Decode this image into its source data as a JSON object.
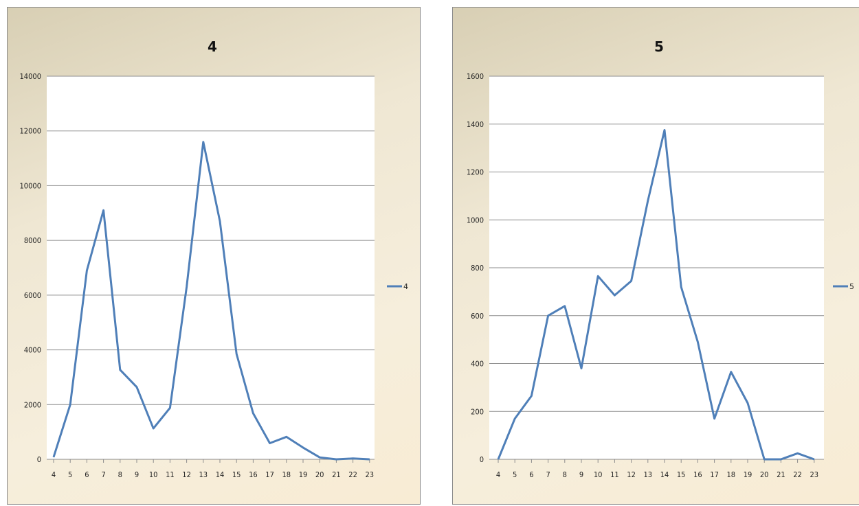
{
  "colors": {
    "series": "#4f7fb8",
    "grid": "#8c8c8c",
    "plot_bg": "#ffffff"
  },
  "chart_data": [
    {
      "type": "line",
      "title": "4",
      "categories": [
        "4",
        "5",
        "6",
        "7",
        "8",
        "9",
        "10",
        "11",
        "12",
        "13",
        "14",
        "15",
        "16",
        "17",
        "18",
        "19",
        "20",
        "21",
        "22",
        "23"
      ],
      "series": [
        {
          "name": "4",
          "values": [
            80,
            2000,
            6900,
            9100,
            3270,
            2640,
            1130,
            1880,
            6300,
            11600,
            8700,
            3850,
            1680,
            590,
            820,
            430,
            70,
            0,
            30,
            0
          ]
        }
      ],
      "ylim": [
        0,
        14000
      ],
      "yticks": [
        0,
        2000,
        4000,
        6000,
        8000,
        10000,
        12000,
        14000
      ],
      "grid": true,
      "legend_position": "right"
    },
    {
      "type": "line",
      "title": "5",
      "categories": [
        "4",
        "5",
        "6",
        "7",
        "8",
        "9",
        "10",
        "11",
        "12",
        "13",
        "14",
        "15",
        "16",
        "17",
        "18",
        "19",
        "20",
        "21",
        "22",
        "23"
      ],
      "series": [
        {
          "name": "5",
          "values": [
            0,
            170,
            265,
            600,
            640,
            380,
            765,
            685,
            745,
            1080,
            1375,
            720,
            490,
            170,
            365,
            235,
            0,
            0,
            25,
            0
          ]
        }
      ],
      "ylim": [
        0,
        1600
      ],
      "yticks": [
        0,
        200,
        400,
        600,
        800,
        1000,
        1200,
        1400,
        1600
      ],
      "grid": true,
      "legend_position": "right"
    }
  ]
}
